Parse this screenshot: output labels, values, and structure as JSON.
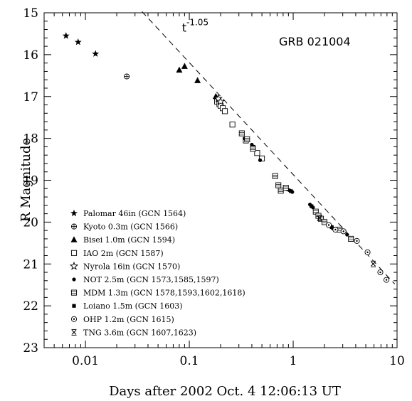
{
  "chart_data": {
    "type": "scatter",
    "title": "GRB 021004",
    "xlabel": "Days after 2002 Oct. 4 12:06:13 UT",
    "ylabel": "R Magnitude",
    "xscale": "log",
    "xlim": [
      0.004,
      10
    ],
    "ylim": [
      23,
      15
    ],
    "y_inverted": true,
    "x_ticks": [
      {
        "value": 0.01,
        "label": "0.01"
      },
      {
        "value": 0.1,
        "label": "0.1"
      },
      {
        "value": 1,
        "label": "1"
      },
      {
        "value": 10,
        "label": "10"
      }
    ],
    "y_ticks": [
      {
        "value": 15,
        "label": "15"
      },
      {
        "value": 16,
        "label": "16"
      },
      {
        "value": 17,
        "label": "17"
      },
      {
        "value": 18,
        "label": "18"
      },
      {
        "value": 19,
        "label": "19"
      },
      {
        "value": 20,
        "label": "20"
      },
      {
        "value": 21,
        "label": "21"
      },
      {
        "value": 22,
        "label": "22"
      },
      {
        "value": 23,
        "label": "23"
      }
    ],
    "grid": false,
    "legend_position": "bottom-left",
    "annotation": {
      "text": "t",
      "exponent": "-1.05",
      "position_value": {
        "x": 0.085,
        "y": 15.45
      }
    },
    "fit_line": {
      "exponent": -1.05,
      "points": [
        {
          "x": 0.035,
          "y": 14.97
        },
        {
          "x": 9.5,
          "y": 21.48
        }
      ]
    },
    "series": [
      {
        "name": "Palomar 46in (GCN 1564)",
        "marker": "star-filled",
        "points": [
          [
            0.0065,
            15.55
          ],
          [
            0.0085,
            15.7
          ],
          [
            0.0125,
            15.98
          ]
        ]
      },
      {
        "name": "Kyoto 0.3m (GCN 1566)",
        "marker": "circle-plus",
        "points": [
          [
            0.025,
            16.52
          ]
        ]
      },
      {
        "name": "Bisei 1.0m (GCN 1594)",
        "marker": "triangle-filled",
        "points": [
          [
            0.08,
            16.37
          ],
          [
            0.09,
            16.28
          ],
          [
            0.12,
            16.62
          ],
          [
            0.18,
            17.0
          ]
        ]
      },
      {
        "name": "IAO 2m (GCN 1587)",
        "marker": "square-open",
        "points": [
          [
            0.185,
            17.12
          ],
          [
            0.195,
            17.18
          ],
          [
            0.2,
            17.22
          ],
          [
            0.21,
            17.28
          ],
          [
            0.22,
            17.35
          ],
          [
            0.26,
            17.67
          ],
          [
            0.35,
            18.05
          ],
          [
            0.45,
            18.35
          ],
          [
            0.5,
            18.48
          ]
        ]
      },
      {
        "name": "Nyrola 16in (GCN 1570)",
        "marker": "star-open",
        "points": [
          [
            0.19,
            17.05
          ],
          [
            0.2,
            17.12
          ]
        ]
      },
      {
        "name": "NOT 2.5m (GCN 1573,1585,1597)",
        "marker": "circle-filled",
        "points": [
          [
            0.34,
            18.0
          ],
          [
            0.4,
            18.15
          ],
          [
            0.42,
            18.2
          ],
          [
            0.48,
            18.52
          ],
          [
            0.82,
            19.2
          ],
          [
            0.88,
            19.22
          ],
          [
            0.92,
            19.24
          ],
          [
            0.98,
            19.28
          ],
          [
            1.45,
            19.58
          ],
          [
            1.55,
            19.65
          ],
          [
            2.3,
            20.1
          ],
          [
            2.4,
            20.15
          ],
          [
            3.3,
            20.3
          ]
        ]
      },
      {
        "name": "MDM 1.3m (GCN 1578,1593,1602,1618)",
        "marker": "square-lined",
        "points": [
          [
            0.32,
            17.88
          ],
          [
            0.36,
            18.02
          ],
          [
            0.41,
            18.25
          ],
          [
            0.67,
            18.9
          ],
          [
            0.72,
            19.12
          ],
          [
            0.76,
            19.25
          ],
          [
            0.85,
            19.18
          ],
          [
            1.65,
            19.75
          ],
          [
            1.75,
            19.85
          ],
          [
            1.85,
            19.92
          ],
          [
            2.0,
            20.0
          ],
          [
            2.8,
            20.18
          ],
          [
            3.6,
            20.4
          ]
        ]
      },
      {
        "name": "Loiano 1.5m (GCN 1603)",
        "marker": "square-filled",
        "points": [
          [
            0.95,
            19.26
          ],
          [
            1.5,
            19.62
          ],
          [
            2.35,
            20.12
          ]
        ]
      },
      {
        "name": "OHP 1.2m (GCN 1615)",
        "marker": "circle-open",
        "points": [
          [
            2.2,
            20.07
          ],
          [
            2.55,
            20.18
          ],
          [
            3.05,
            20.22
          ],
          [
            4.1,
            20.45
          ],
          [
            5.2,
            20.72
          ],
          [
            6.9,
            21.2
          ],
          [
            7.9,
            21.38
          ]
        ]
      },
      {
        "name": "TNG 3.6m (GCN 1607,1623)",
        "marker": "x-bar",
        "points": [
          [
            1.8,
            19.9
          ],
          [
            5.9,
            21.0
          ]
        ]
      }
    ]
  }
}
